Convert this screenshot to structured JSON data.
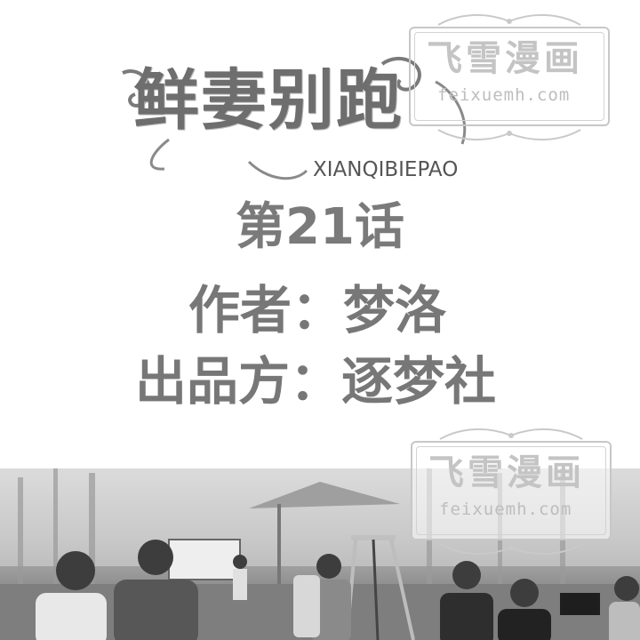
{
  "title": {
    "chinese": "鲜妻别跑",
    "pinyin": "XIANQIBIEPAO"
  },
  "chapter": "第21话",
  "credits": {
    "author": "作者：梦洛",
    "publisher": "出品方：逐梦社"
  },
  "watermark": {
    "title": "飞雪漫画",
    "url": "feixuemh.com"
  },
  "colors": {
    "title_gray": "#6e6e6e",
    "text_gray": "#777777",
    "watermark_gray": "#c4c4c4",
    "background": "#ffffff"
  }
}
